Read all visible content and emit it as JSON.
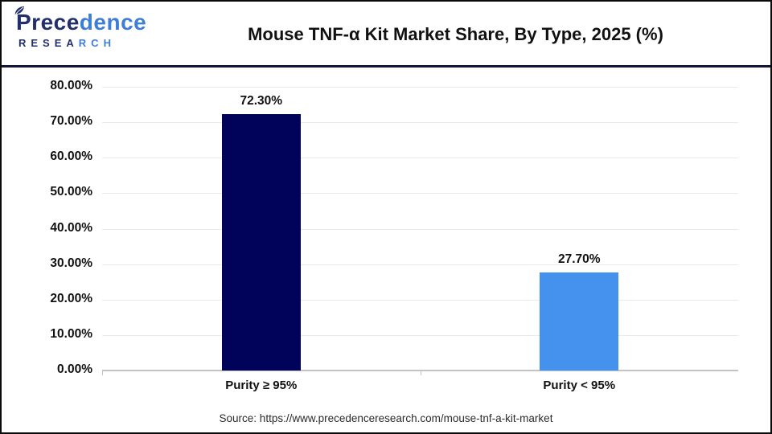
{
  "page": {
    "background": "#ffffff",
    "border_color": "#0a0a0a"
  },
  "header": {
    "logo": {
      "name_part1": "Prece",
      "name_part2": "dence",
      "subtitle_part1": "RESEA",
      "subtitle_part2": "RCH",
      "color_dark": "#222f6e",
      "color_blue": "#3c7ed8"
    },
    "title": "Mouse TNF-α Kit Market Share, By Type, 2025 (%)",
    "divider_color": "#111539"
  },
  "chart_data": {
    "type": "bar",
    "title": "Mouse TNF-α Kit Market Share, By Type, 2025 (%)",
    "categories": [
      "Purity ≥ 95%",
      "Purity < 95%"
    ],
    "values": [
      72.3,
      27.7
    ],
    "value_labels": [
      "72.30%",
      "27.70%"
    ],
    "bar_colors": [
      "#01035a",
      "#4591ee"
    ],
    "xlabel": "",
    "ylabel": "",
    "ylim": [
      0,
      80
    ],
    "ytick_step": 10,
    "ytick_labels": [
      "0.00%",
      "10.00%",
      "20.00%",
      "30.00%",
      "40.00%",
      "50.00%",
      "60.00%",
      "70.00%",
      "80.00%"
    ],
    "grid": true,
    "legend": false,
    "gridline_color": "#e9e9e9",
    "axis_color": "#c3c3c3"
  },
  "footer": {
    "source": "Source: https://www.precedenceresearch.com/mouse-tnf-a-kit-market"
  }
}
